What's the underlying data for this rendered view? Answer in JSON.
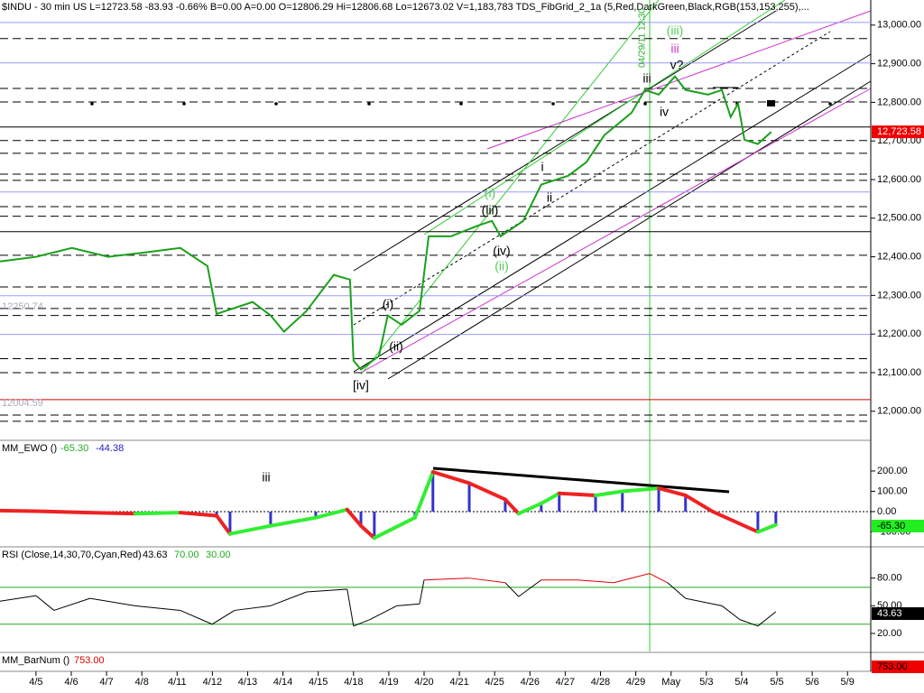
{
  "header": "$INDU - 30 min  US  L=12723.58  -83.93  -0.66%  B=0.00  A=0.00  O=12806.29  Hi=12806.68  Lo=12673.02  V=1,183,783  TDS_FibGrid_2_1a (5,Red,DarkGreen,Black,RGB(153,153,255),...",
  "chart_data": [
    {
      "type": "line",
      "color": "#1aa01a",
      "x": [
        -1.02,
        0,
        1.02,
        2.05,
        3.07,
        4.09,
        4.86,
        5.12,
        6.14,
        6.65,
        7.03,
        7.67,
        8.44,
        8.9,
        9.0,
        9.21,
        9.72,
        9.97,
        10.36,
        10.87,
        11.13,
        11.76,
        12.53,
        12.92,
        13.17,
        13.81,
        14.32,
        15.09,
        15.6,
        16.11,
        16.88,
        17.26,
        17.65,
        18.11,
        18.41,
        19.05,
        19.44,
        19.69,
        19.9,
        20.08,
        20.46,
        20.84
      ],
      "values": [
        12388,
        12400,
        12423,
        12400,
        12411,
        12423,
        12376,
        12252,
        12283,
        12248,
        12206,
        12260,
        12353,
        12341,
        12131,
        12108,
        12143,
        12248,
        12224,
        12260,
        12453,
        12453,
        12481,
        12493,
        12453,
        12493,
        12587,
        12610,
        12645,
        12715,
        12773,
        12832,
        12820,
        12867,
        12832,
        12820,
        12832,
        12762,
        12797,
        12703,
        12692,
        12723.58
      ],
      "xlim": [
        -1.02,
        23.66
      ],
      "xticks": [
        {
          "value": 0,
          "label": "4/5"
        },
        {
          "value": 1,
          "label": "4/6"
        },
        {
          "value": 2,
          "label": "4/7"
        },
        {
          "value": 3,
          "label": "4/8"
        },
        {
          "value": 4,
          "label": "4/11"
        },
        {
          "value": 5,
          "label": "4/12"
        },
        {
          "value": 6,
          "label": "4/13"
        },
        {
          "value": 7,
          "label": "4/14"
        },
        {
          "value": 8,
          "label": "4/15"
        },
        {
          "value": 9,
          "label": "4/18"
        },
        {
          "value": 10,
          "label": "4/19"
        },
        {
          "value": 11,
          "label": "4/20"
        },
        {
          "value": 12,
          "label": "4/21"
        },
        {
          "value": 13,
          "label": "4/25"
        },
        {
          "value": 14,
          "label": "4/26"
        },
        {
          "value": 15,
          "label": "4/27"
        },
        {
          "value": 16,
          "label": "4/28"
        },
        {
          "value": 17,
          "label": "4/29"
        },
        {
          "value": 18,
          "label": "May"
        },
        {
          "value": 19,
          "label": "5/3"
        },
        {
          "value": 20,
          "label": "5/4"
        },
        {
          "value": 21,
          "label": "5/5"
        },
        {
          "value": 22,
          "label": "5/6"
        },
        {
          "value": 23,
          "label": "5/9"
        }
      ],
      "ylim": [
        11927,
        13065
      ],
      "yticks": [
        {
          "value": 12000,
          "label": "12,000.00"
        },
        {
          "value": 12100,
          "label": "12,100.00"
        },
        {
          "value": 12200,
          "label": "12,200.00"
        },
        {
          "value": 12300,
          "label": "12,300.00"
        },
        {
          "value": 12400,
          "label": "12,400.00"
        },
        {
          "value": 12500,
          "label": "12,500.00"
        },
        {
          "value": 12600,
          "label": "12,600.00"
        },
        {
          "value": 12700,
          "label": "12,700.00"
        },
        {
          "value": 12800,
          "label": "12,800.00"
        },
        {
          "value": 12900,
          "label": "12,900.00"
        },
        {
          "value": 13000,
          "label": "13,000.00"
        }
      ],
      "last_label": "12,723.58",
      "levels": [
        {
          "value": 12965,
          "style": "dash"
        },
        {
          "value": 12836,
          "style": "dash"
        },
        {
          "value": 12801,
          "style": "dash"
        },
        {
          "value": 12701,
          "style": "dash"
        },
        {
          "value": 12668,
          "style": "dash"
        },
        {
          "value": 12614,
          "style": "dash"
        },
        {
          "value": 12598,
          "style": "dash"
        },
        {
          "value": 12530,
          "style": "dash"
        },
        {
          "value": 12505,
          "style": "dash"
        },
        {
          "value": 12404,
          "style": "dash"
        },
        {
          "value": 12322,
          "style": "dash"
        },
        {
          "value": 12266,
          "style": "dash"
        },
        {
          "value": 12248,
          "style": "dash"
        },
        {
          "value": 12136,
          "style": "dash"
        },
        {
          "value": 12100,
          "style": "dash"
        },
        {
          "value": 11990,
          "style": "dash"
        },
        {
          "value": 11974,
          "style": "dash"
        },
        {
          "value": 12736,
          "style": "solid"
        },
        {
          "value": 12465,
          "style": "solid"
        },
        {
          "value": 12030,
          "style": "red"
        },
        {
          "value": 13007,
          "style": "purple"
        },
        {
          "value": 12902,
          "style": "purple"
        },
        {
          "value": 12568,
          "style": "purple"
        },
        {
          "value": 12299,
          "style": "purple"
        },
        {
          "value": 12199,
          "style": "purple"
        }
      ],
      "level_labels": [
        "12250.74",
        "12004.59"
      ],
      "annotations": [
        {
          "text": "[iv]",
          "color": "#000"
        },
        {
          "text": "(i)",
          "color": "#000"
        },
        {
          "text": "(ii)",
          "color": "#000"
        },
        {
          "text": "(i)",
          "color": "#5c5"
        },
        {
          "text": "(iii)",
          "color": "#000"
        },
        {
          "text": "(iv)",
          "color": "#000"
        },
        {
          "text": "(ii)",
          "color": "#5c5"
        },
        {
          "text": "i",
          "color": "#000"
        },
        {
          "text": "ii",
          "color": "#000"
        },
        {
          "text": "iii",
          "color": "#000"
        },
        {
          "text": "(iii)",
          "color": "#5c5"
        },
        {
          "text": "iii",
          "color": "#c3c"
        },
        {
          "text": "v?",
          "color": "#000"
        },
        {
          "text": "iv",
          "color": "#000"
        },
        {
          "text": "04/29/11 12:30",
          "color": "#2a2"
        }
      ]
    },
    {
      "type": "line",
      "title": "MM_EWO ()",
      "readouts": [
        "-65.30",
        "-44.38"
      ],
      "x": [
        -1.02,
        0,
        1.53,
        2.81,
        4.09,
        5.12,
        5.5,
        6.65,
        7.93,
        8.82,
        9.21,
        9.59,
        10.74,
        11.25,
        12.28,
        13.3,
        13.68,
        14.32,
        14.83,
        15.86,
        16.62,
        17.65,
        18.41,
        19.18,
        20.46,
        20.97
      ],
      "values": [
        5,
        2,
        -5,
        -10,
        -5,
        -20,
        -110,
        -70,
        -30,
        10,
        -70,
        -130,
        -30,
        195,
        140,
        60,
        -10,
        40,
        90,
        80,
        100,
        115,
        80,
        0,
        -100,
        -65.3
      ],
      "ylim": [
        -169,
        342
      ],
      "yticks": [
        {
          "value": -100,
          "label": "-100.00"
        },
        {
          "value": 0,
          "label": "0.00"
        },
        {
          "value": 100,
          "label": "100.00"
        },
        {
          "value": 200,
          "label": "200.00"
        }
      ],
      "annotations": [
        "iii"
      ]
    },
    {
      "type": "line",
      "title": "RSI (Close,14,30,70,Cyan,Red)",
      "readouts": [
        "43.63",
        "70.00",
        "30.00"
      ],
      "x": [
        -1.02,
        0,
        0.51,
        1.53,
        2.81,
        4.09,
        4.99,
        5.63,
        6.65,
        7.67,
        8.82,
        9.0,
        9.46,
        10.23,
        10.87,
        11.0,
        12.28,
        13.3,
        13.68,
        14.32,
        15.35,
        16.37,
        17.39,
        17.9,
        18.41,
        19.44,
        19.95,
        20.46,
        20.97
      ],
      "values": [
        55,
        61,
        45,
        58,
        50,
        45,
        30,
        45,
        50,
        65,
        68,
        28,
        35,
        50,
        52,
        78,
        80,
        75,
        60,
        78,
        78,
        75,
        85,
        75,
        58,
        50,
        35,
        28,
        43.63
      ],
      "ylim": [
        0.4,
        112
      ],
      "yticks": [
        {
          "value": 20,
          "label": "20.00"
        },
        {
          "value": 50,
          "label": "50.00"
        },
        {
          "value": 80,
          "label": "80.00"
        }
      ],
      "bands": [
        70,
        30
      ]
    },
    {
      "type": "readout",
      "title": "MM_BarNum ()",
      "readouts": [
        "753.00"
      ]
    }
  ]
}
